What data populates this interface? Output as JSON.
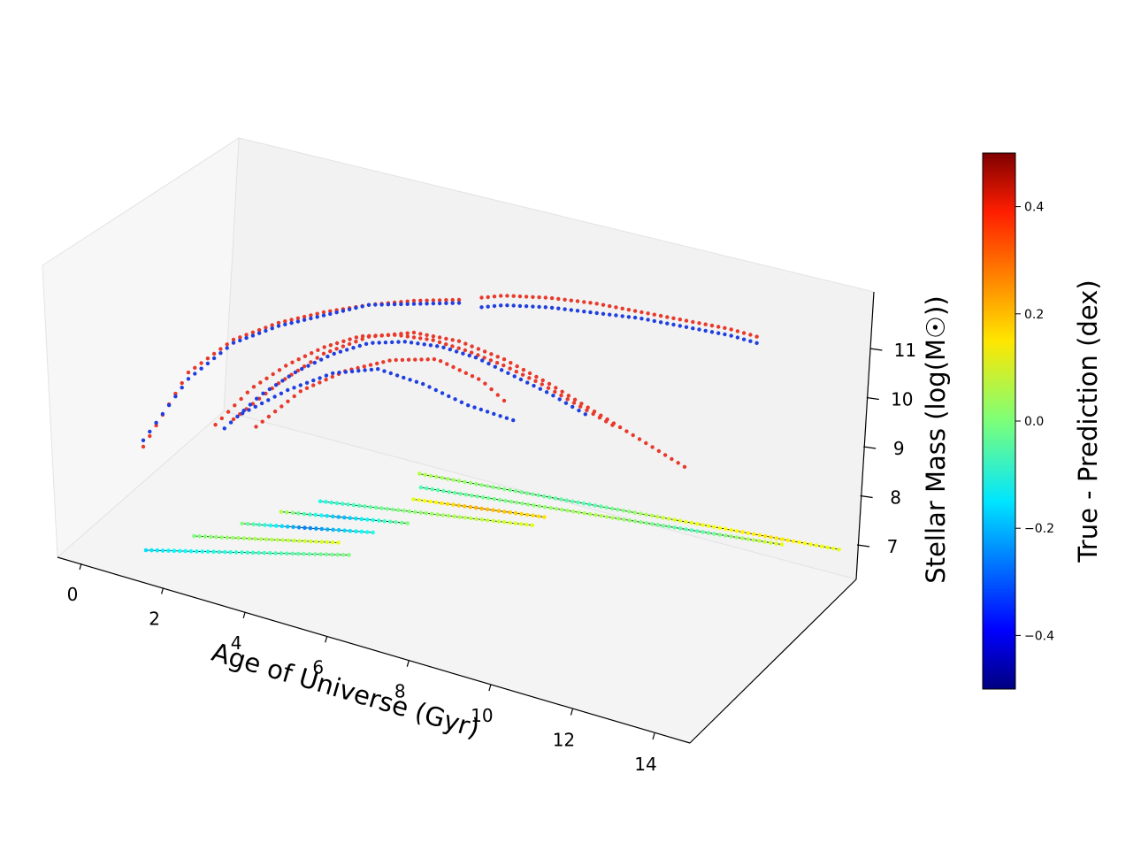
{
  "chart_data": {
    "type": "scatter",
    "projection": "3d",
    "title": "",
    "xlabel": "Age of Universe (Gyr)",
    "zlabel": "Stellar Mass (log(M☉))",
    "ylabel": "",
    "xlim": [
      -0.5,
      14.8
    ],
    "zlim": [
      6.5,
      12
    ],
    "x_ticks": [
      "0",
      "2",
      "4",
      "6",
      "8",
      "10",
      "12",
      "14"
    ],
    "z_ticks": [
      "7",
      "8",
      "9",
      "10",
      "11"
    ],
    "grid": false,
    "colorbar": {
      "label": "True - Prediction (dex)",
      "colormap": "jet",
      "range": [
        -0.5,
        0.5
      ],
      "ticks": [
        "0.4",
        "0.2",
        "0.0",
        "−0.2",
        "−0.4"
      ],
      "tick_values": [
        0.4,
        0.2,
        0.0,
        -0.2,
        -0.4
      ]
    },
    "series": [
      {
        "role": "true stellar mass (red)",
        "color": "#e8392b",
        "curves": [
          {
            "x": [
              1.0,
              2.0,
              3.0,
              4.0,
              5.0,
              6.0,
              7.0,
              8.0
            ],
            "z": [
              9.2,
              10.4,
              10.95,
              11.25,
              11.45,
              11.6,
              11.7,
              11.75
            ]
          },
          {
            "x": [
              8.5,
              9.0,
              10.0,
              11.0,
              12.0,
              13.0,
              14.0,
              14.6
            ],
            "z": [
              11.8,
              11.85,
              11.85,
              11.8,
              11.7,
              11.6,
              11.5,
              11.4
            ]
          },
          {
            "x": [
              2.6,
              3.4,
              4.2,
              5.0,
              5.8,
              6.6,
              7.4,
              8.2,
              9.0,
              9.8,
              10.6,
              11.4
            ],
            "z": [
              9.6,
              10.2,
              10.6,
              10.9,
              11.1,
              11.15,
              11.1,
              10.95,
              10.75,
              10.5,
              10.2,
              9.9
            ]
          },
          {
            "x": [
              3.0,
              4.0,
              5.0,
              6.0,
              7.0,
              8.0,
              9.0,
              10.0,
              11.0,
              12.0,
              13.0
            ],
            "z": [
              9.7,
              10.3,
              10.8,
              11.1,
              11.2,
              11.1,
              10.85,
              10.5,
              10.1,
              9.7,
              9.3
            ]
          },
          {
            "x": [
              3.5,
              4.5,
              5.5,
              6.5,
              7.5,
              8.5,
              9.0
            ],
            "z": [
              9.6,
              10.2,
              10.55,
              10.75,
              10.8,
              10.5,
              10.2
            ]
          }
        ]
      },
      {
        "role": "predicted stellar mass (blue)",
        "color": "#1f3fe0",
        "curves": [
          {
            "x": [
              1.0,
              2.0,
              3.0,
              4.0,
              5.0,
              6.0,
              7.0,
              8.0
            ],
            "z": [
              9.3,
              10.3,
              10.9,
              11.2,
              11.4,
              11.6,
              11.65,
              11.7
            ]
          },
          {
            "x": [
              8.5,
              9.0,
              10.0,
              11.0,
              12.0,
              13.0,
              14.0,
              14.6
            ],
            "z": [
              11.65,
              11.7,
              11.7,
              11.65,
              11.6,
              11.5,
              11.4,
              11.3
            ]
          },
          {
            "x": [
              2.8,
              3.6,
              4.4,
              5.2,
              6.0,
              6.8,
              7.6,
              8.4,
              9.2,
              10.0,
              10.8
            ],
            "z": [
              9.55,
              10.1,
              10.5,
              10.8,
              11.0,
              11.05,
              11.0,
              10.85,
              10.6,
              10.35,
              10.05
            ]
          },
          {
            "x": [
              3.2,
              4.2,
              5.2,
              6.2,
              7.2,
              8.2,
              9.2
            ],
            "z": [
              9.8,
              10.2,
              10.5,
              10.6,
              10.4,
              10.1,
              9.9
            ]
          }
        ]
      },
      {
        "role": "merger-tree branches on floor (coloured by residual)",
        "branches": [
          {
            "x": [
              5.2,
              7.0,
              9.0,
              11.0,
              13.0,
              14.5
            ],
            "residual": [
              0.05,
              0.0,
              -0.05,
              0.1,
              0.15,
              0.1
            ]
          },
          {
            "x": [
              5.5,
              7.5,
              9.5,
              11.5,
              13.5
            ],
            "residual": [
              -0.05,
              0.0,
              0.05,
              -0.05,
              0.1
            ]
          },
          {
            "x": [
              5.6,
              7.0,
              8.5
            ],
            "residual": [
              0.1,
              0.2,
              0.15
            ]
          },
          {
            "x": [
              3.8,
              5.5,
              7.0,
              8.5
            ],
            "residual": [
              -0.1,
              0.0,
              0.05,
              0.1
            ]
          },
          {
            "x": [
              3.2,
              4.5,
              6.0
            ],
            "residual": [
              0.05,
              -0.2,
              0.0
            ]
          },
          {
            "x": [
              2.6,
              4.0,
              5.5
            ],
            "residual": [
              0.0,
              -0.25,
              -0.1
            ]
          },
          {
            "x": [
              1.8,
              3.5,
              5.0
            ],
            "residual": [
              0.0,
              0.05,
              0.1
            ]
          },
          {
            "x": [
              1.0,
              2.5,
              4.0,
              5.5
            ],
            "residual": [
              -0.15,
              -0.1,
              -0.05,
              0.0
            ]
          }
        ]
      }
    ]
  }
}
